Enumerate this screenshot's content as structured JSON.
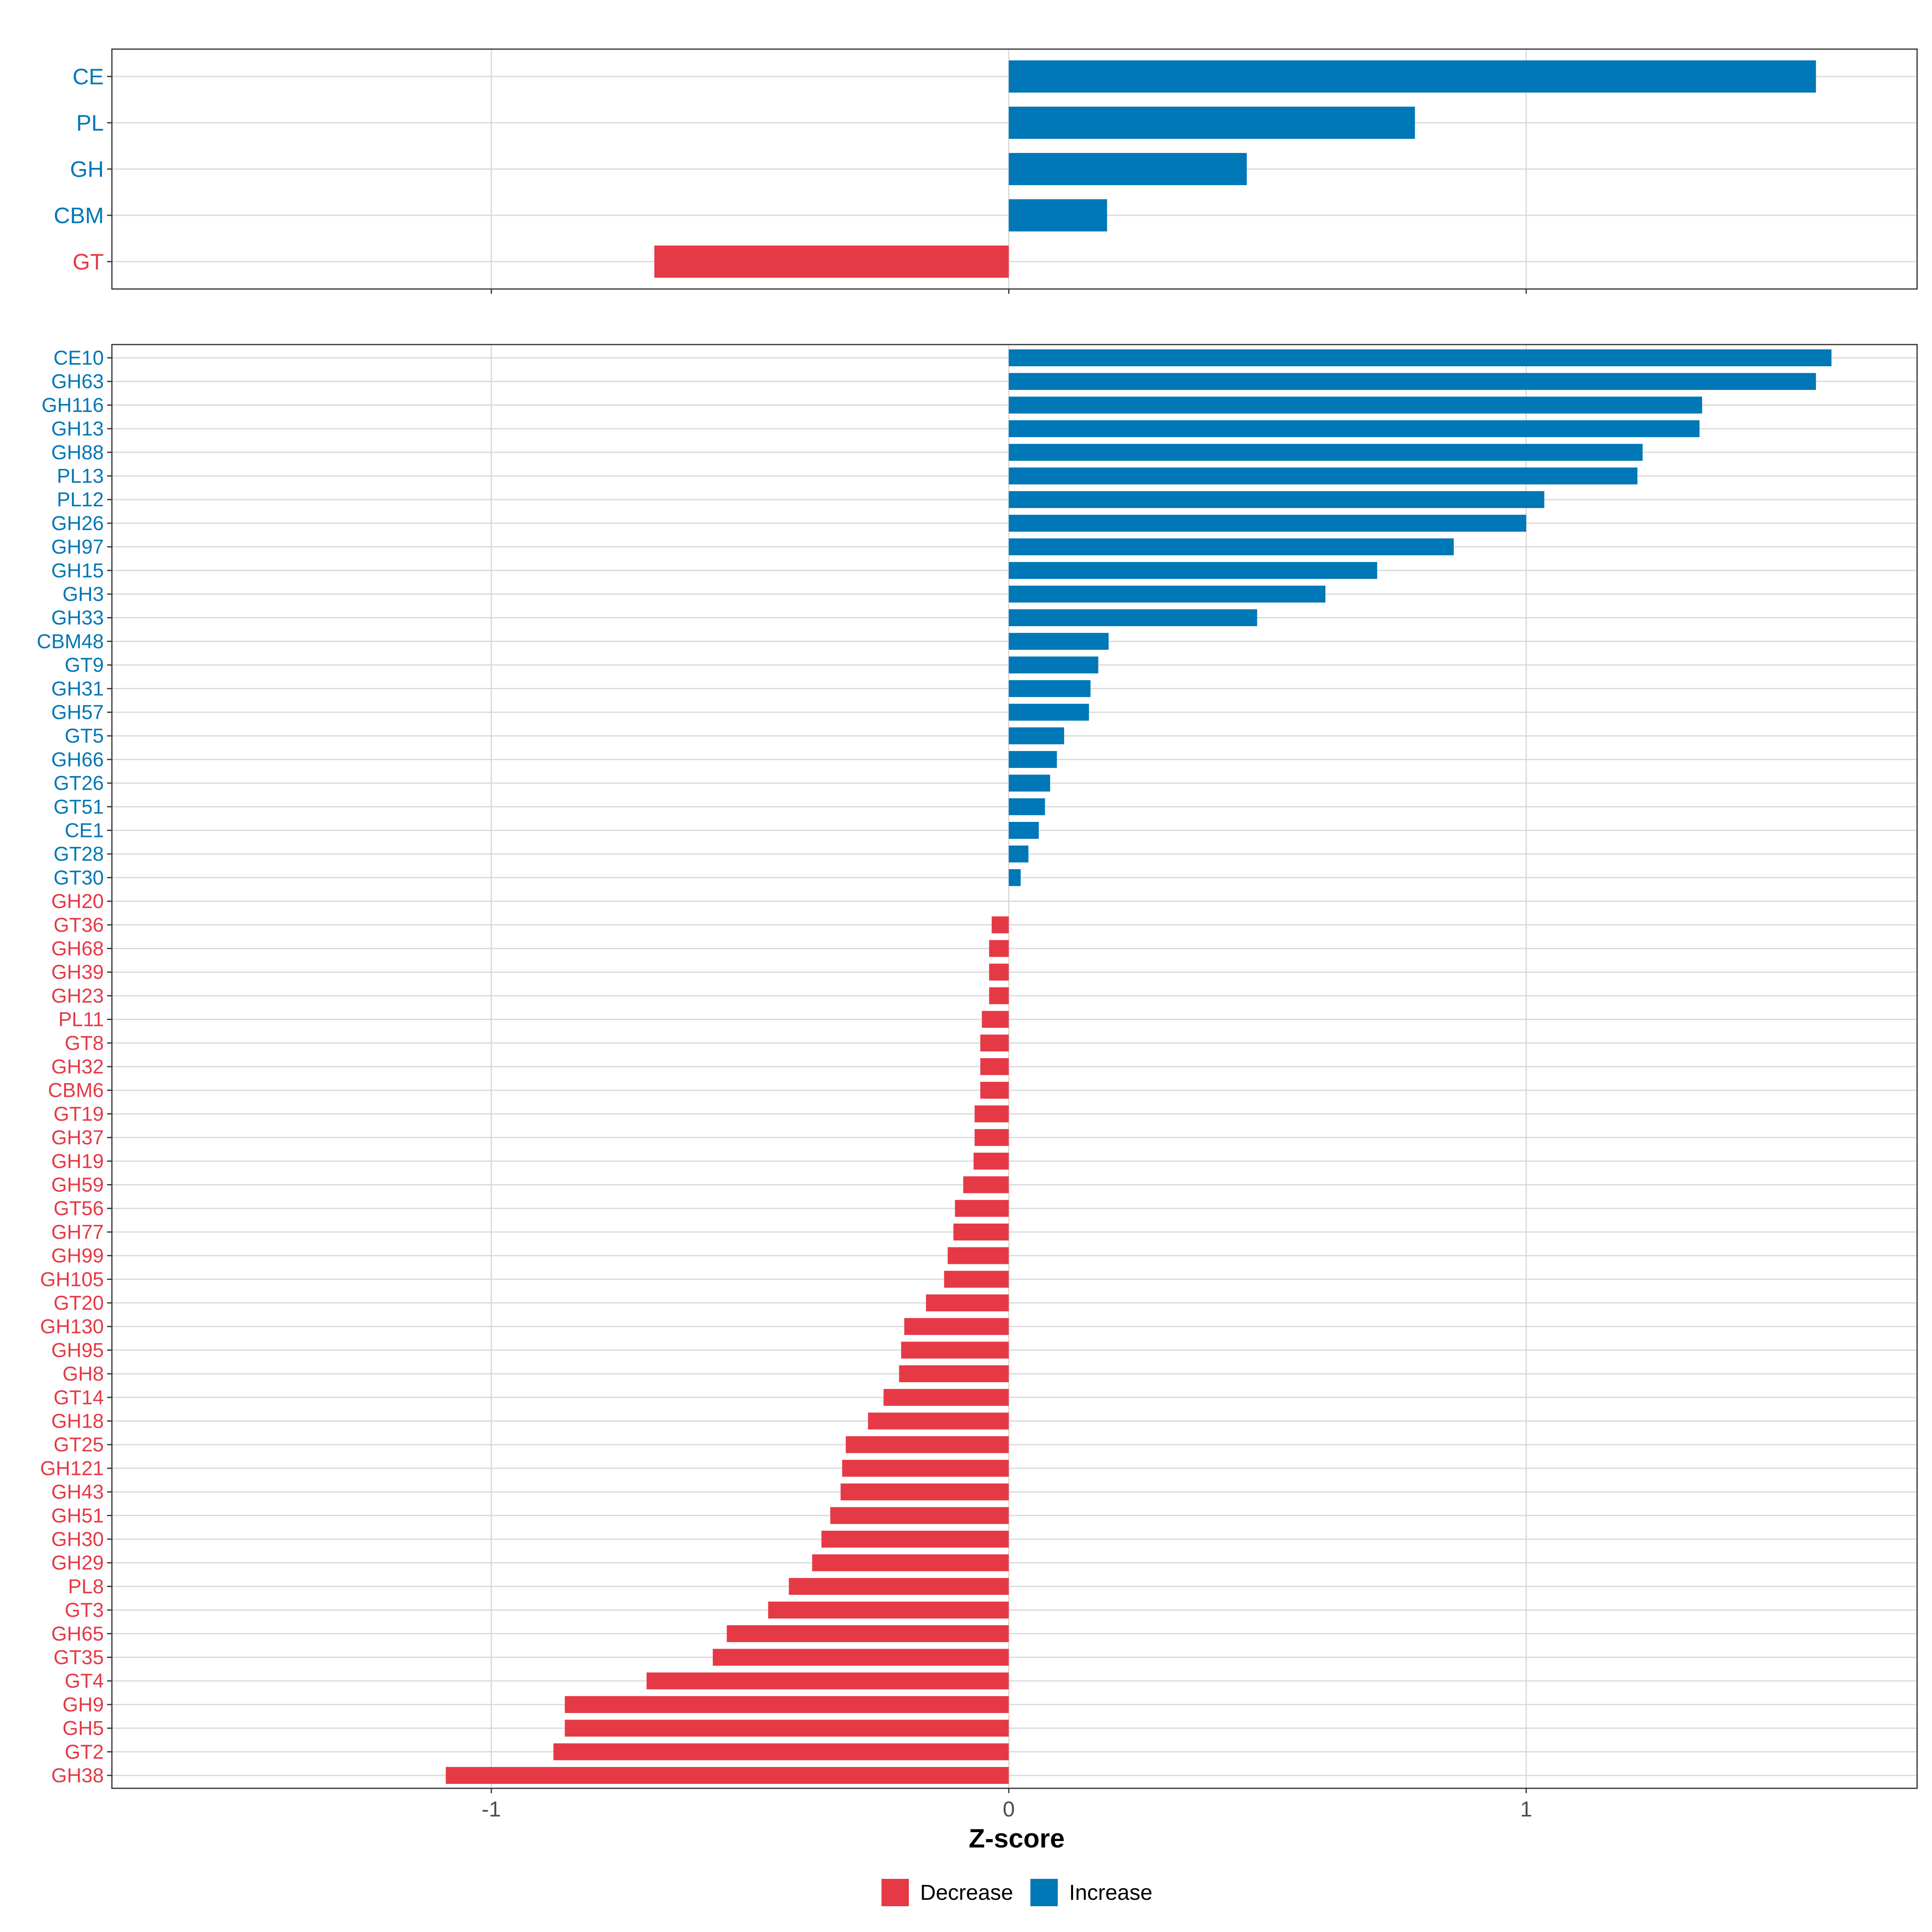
{
  "colors": {
    "decrease": "#E63946",
    "increase": "#0077B6"
  },
  "chart_data": [
    {
      "type": "bar",
      "orientation": "horizontal",
      "title": "",
      "xlabel": "",
      "ylabel": "",
      "xlim": [
        -1.7333,
        1.7555
      ],
      "xticks": [
        -1,
        0,
        1
      ],
      "grid": true,
      "categories": [
        "CE",
        "PL",
        "GH",
        "CBM",
        "GT"
      ],
      "values": [
        1.56,
        0.785,
        0.46,
        0.19,
        -0.685
      ]
    },
    {
      "type": "bar",
      "orientation": "horizontal",
      "title": "",
      "xlabel": "Z-score",
      "ylabel": "",
      "xlim": [
        -1.7333,
        1.7555
      ],
      "xticks": [
        -1,
        0,
        1
      ],
      "xtick_labels": [
        "-1",
        "0",
        "1"
      ],
      "grid": true,
      "categories": [
        "CE10",
        "GH63",
        "GH116",
        "GH13",
        "GH88",
        "PL13",
        "PL12",
        "GH26",
        "GH97",
        "GH15",
        "GH3",
        "GH33",
        "CBM48",
        "GT9",
        "GH31",
        "GH57",
        "GT5",
        "GH66",
        "GT26",
        "GT51",
        "CE1",
        "GT28",
        "GT30",
        "GH20",
        "GT36",
        "GH68",
        "GH39",
        "GH23",
        "PL11",
        "GT8",
        "GH32",
        "CBM6",
        "GT19",
        "GH37",
        "GH19",
        "GH59",
        "GT56",
        "GH77",
        "GH99",
        "GH105",
        "GT20",
        "GH130",
        "GH95",
        "GH8",
        "GT14",
        "GH18",
        "GT25",
        "GH121",
        "GH43",
        "GH51",
        "GH30",
        "GH29",
        "PL8",
        "GT3",
        "GH65",
        "GT35",
        "GT4",
        "GH9",
        "GH5",
        "GT2",
        "GH38"
      ],
      "values": [
        1.59,
        1.56,
        1.34,
        1.335,
        1.225,
        1.215,
        1.035,
        1.0,
        0.86,
        0.712,
        0.612,
        0.48,
        0.193,
        0.173,
        0.158,
        0.155,
        0.107,
        0.093,
        0.08,
        0.07,
        0.058,
        0.038,
        0.023,
        0.0,
        -0.033,
        -0.038,
        -0.038,
        -0.038,
        -0.052,
        -0.055,
        -0.055,
        -0.055,
        -0.066,
        -0.066,
        -0.068,
        -0.088,
        -0.104,
        -0.107,
        -0.118,
        -0.125,
        -0.16,
        -0.202,
        -0.208,
        -0.212,
        -0.242,
        -0.272,
        -0.315,
        -0.322,
        -0.325,
        -0.345,
        -0.362,
        -0.38,
        -0.425,
        -0.465,
        -0.545,
        -0.572,
        -0.7,
        -0.858,
        -0.858,
        -0.88,
        -1.088
      ]
    }
  ],
  "legend": {
    "position": "bottom",
    "items": [
      {
        "label": "Decrease",
        "key": "decrease"
      },
      {
        "label": "Increase",
        "key": "increase"
      }
    ]
  }
}
